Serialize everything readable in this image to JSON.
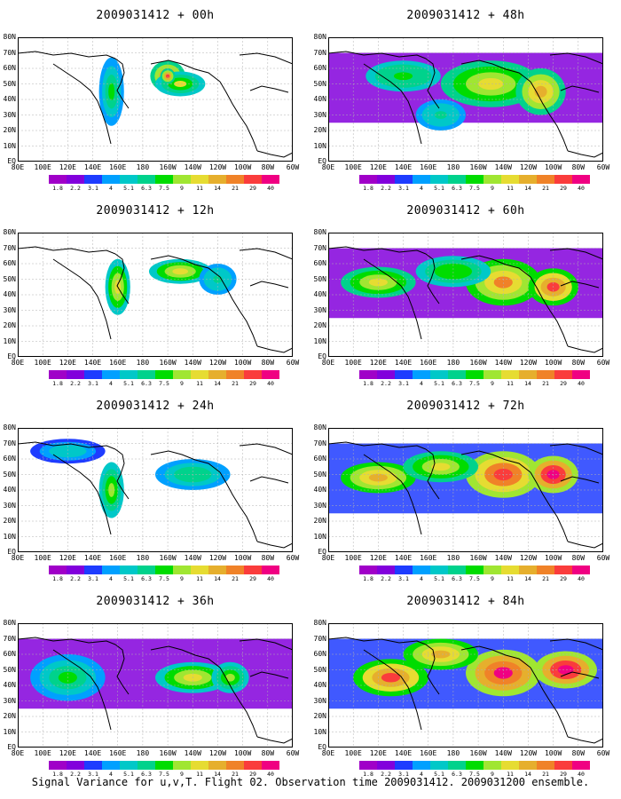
{
  "panels": [
    {
      "title": "2009031412 + 00h",
      "intensity": 0.15,
      "blobs": [
        [
          -160,
          55,
          1.0,
          14,
          10
        ],
        [
          -150,
          50,
          0.7,
          20,
          8
        ],
        [
          155,
          45,
          0.5,
          10,
          22
        ],
        [
          -160,
          55,
          1.0,
          6,
          5
        ]
      ]
    },
    {
      "title": "2009031412 + 48h",
      "intensity": 0.55,
      "blobs": [
        [
          -150,
          50,
          0.6,
          40,
          15
        ],
        [
          -110,
          45,
          0.7,
          20,
          15
        ],
        [
          140,
          55,
          0.4,
          30,
          10
        ],
        [
          170,
          30,
          0.3,
          20,
          10
        ]
      ]
    },
    {
      "title": "2009031412 + 12h",
      "intensity": 0.3,
      "blobs": [
        [
          -150,
          55,
          0.7,
          25,
          8
        ],
        [
          160,
          45,
          0.7,
          10,
          18
        ],
        [
          -120,
          50,
          0.4,
          15,
          10
        ]
      ]
    },
    {
      "title": "2009031412 + 60h",
      "intensity": 0.65,
      "blobs": [
        [
          -140,
          48,
          0.7,
          30,
          15
        ],
        [
          -100,
          45,
          0.8,
          20,
          12
        ],
        [
          120,
          48,
          0.5,
          30,
          10
        ],
        [
          180,
          55,
          0.4,
          30,
          10
        ]
      ]
    },
    {
      "title": "2009031412 + 24h",
      "intensity": 0.35,
      "blobs": [
        [
          155,
          40,
          0.6,
          10,
          18
        ],
        [
          -140,
          50,
          0.4,
          30,
          10
        ],
        [
          120,
          65,
          0.3,
          30,
          8
        ]
      ]
    },
    {
      "title": "2009031412 + 72h",
      "intensity": 0.75,
      "blobs": [
        [
          -140,
          50,
          0.8,
          30,
          15
        ],
        [
          -100,
          50,
          0.9,
          20,
          12
        ],
        [
          120,
          48,
          0.6,
          30,
          10
        ],
        [
          170,
          55,
          0.5,
          30,
          10
        ]
      ]
    },
    {
      "title": "2009031412 + 36h",
      "intensity": 0.45,
      "blobs": [
        [
          -140,
          45,
          0.6,
          30,
          10
        ],
        [
          -110,
          45,
          0.5,
          15,
          10
        ],
        [
          120,
          45,
          0.4,
          30,
          15
        ]
      ]
    },
    {
      "title": "2009031412 + 84h",
      "intensity": 0.85,
      "blobs": [
        [
          -140,
          48,
          0.8,
          30,
          15
        ],
        [
          -90,
          50,
          0.9,
          25,
          12
        ],
        [
          130,
          45,
          0.7,
          30,
          12
        ],
        [
          170,
          60,
          0.6,
          30,
          10
        ]
      ]
    }
  ],
  "lat_labels": [
    "EQ",
    "10N",
    "20N",
    "30N",
    "40N",
    "50N",
    "60N",
    "70N",
    "80N"
  ],
  "lon_labels": [
    "80E",
    "100E",
    "120E",
    "140E",
    "160E",
    "180",
    "160W",
    "140W",
    "120W",
    "100W",
    "80W",
    "60W"
  ],
  "colorbar": {
    "colors": [
      "#a000c8",
      "#8200dc",
      "#1e3cff",
      "#00a0ff",
      "#00c8c8",
      "#00d28c",
      "#00dc00",
      "#a0e632",
      "#e6dc32",
      "#e6af2d",
      "#f08228",
      "#fa3c3c",
      "#f00082"
    ],
    "labels": [
      "1.8",
      "2.2",
      "3.1",
      "4",
      "5.1",
      "6.3",
      "7.5",
      "9",
      "11",
      "14",
      "21",
      "29",
      "40"
    ]
  },
  "footer": "Signal Variance for u,v,T. Flight 02. Observation time 2009031412. 2009031200 ensemble."
}
